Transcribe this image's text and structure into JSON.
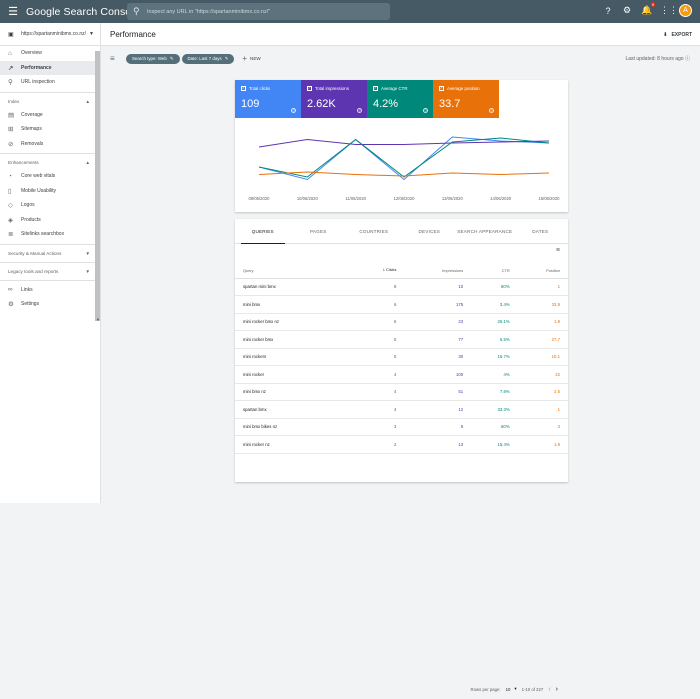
{
  "app": {
    "menu_icon": "menu-icon",
    "logo_prefix": "Google",
    "logo_text": "Search Console",
    "search_placeholder": "Inspect any URL in \"https://spartanminibmx.co.nz/\"",
    "notification_count": "9",
    "avatar_letter": "A"
  },
  "sidebar": {
    "property": "https://spartanminibmx.co.nz/",
    "items_main": [
      {
        "label": "Overview",
        "icon": "home-icon"
      },
      {
        "label": "Performance",
        "icon": "trending-icon",
        "active": true
      },
      {
        "label": "URL inspection",
        "icon": "search-icon"
      }
    ],
    "index_label": "Index",
    "items_index": [
      {
        "label": "Coverage",
        "icon": "coverage-icon"
      },
      {
        "label": "Sitemaps",
        "icon": "sitemap-icon"
      },
      {
        "label": "Removals",
        "icon": "removals-icon"
      }
    ],
    "enhancements_label": "Enhancements",
    "items_enh": [
      {
        "label": "Core web vitals",
        "icon": "speed-icon"
      },
      {
        "label": "Mobile Usability",
        "icon": "phone-icon"
      },
      {
        "label": "Logos",
        "icon": "logo-icon"
      },
      {
        "label": "Products",
        "icon": "product-icon"
      },
      {
        "label": "Sitelinks searchbox",
        "icon": "sitelinks-icon"
      }
    ],
    "security_label": "Security & Manual Actions",
    "legacy_label": "Legacy tools and reports",
    "items_bottom": [
      {
        "label": "Links",
        "icon": "links-icon"
      },
      {
        "label": "Settings",
        "icon": "settings-icon"
      }
    ]
  },
  "header": {
    "title": "Performance",
    "export_label": "EXPORT"
  },
  "filters": {
    "search_type": "Search type: Web",
    "date": "Date: Last 7 days",
    "new_label": "NEW",
    "last_updated": "Last updated: 8 hours ago"
  },
  "metrics": [
    {
      "label": "Total clicks",
      "value": "109",
      "color": "#4285f4"
    },
    {
      "label": "Total impressions",
      "value": "2.62K",
      "color": "#5e35b1"
    },
    {
      "label": "Average CTR",
      "value": "4.2%",
      "color": "#00897b"
    },
    {
      "label": "Average position",
      "value": "33.7",
      "color": "#e8710a"
    }
  ],
  "chart_data": {
    "type": "line",
    "x": [
      "09/06/2020",
      "10/06/2020",
      "11/06/2020",
      "12/06/2020",
      "13/06/2020",
      "14/06/2020",
      "15/06/2020"
    ],
    "series": [
      {
        "color": "#4285f4",
        "values": [
          0.7,
          0.95,
          0.15,
          0.95,
          0.1,
          0.18,
          0.22
        ]
      },
      {
        "color": "#5e35b1",
        "values": [
          0.3,
          0.15,
          0.25,
          0.25,
          0.22,
          0.2,
          0.18
        ]
      },
      {
        "color": "#00897b",
        "values": [
          0.7,
          0.9,
          0.15,
          0.9,
          0.2,
          0.12,
          0.22
        ]
      },
      {
        "color": "#e8710a",
        "values": [
          0.85,
          0.8,
          0.85,
          0.88,
          0.82,
          0.85,
          0.82
        ]
      }
    ]
  },
  "tabs": [
    "QUERIES",
    "PAGES",
    "COUNTRIES",
    "DEVICES",
    "SEARCH APPEARANCE",
    "DATES"
  ],
  "table": {
    "headers": [
      "Query",
      "Clicks",
      "Impressions",
      "CTR",
      "Position"
    ],
    "rows": [
      [
        "spartan mini bmx",
        "8",
        "10",
        "80%",
        "1"
      ],
      [
        "mini bmx",
        "6",
        "175",
        "3.4%",
        "33.9"
      ],
      [
        "mini rocker bmx nz",
        "6",
        "23",
        "26.1%",
        "1.9"
      ],
      [
        "mini rocker bmx",
        "5",
        "77",
        "6.5%",
        "27.7"
      ],
      [
        "mini rockers",
        "5",
        "30",
        "16.7%",
        "10.1"
      ],
      [
        "mini rocker",
        "4",
        "100",
        "4%",
        "22"
      ],
      [
        "mini bmx nz",
        "4",
        "51",
        "7.8%",
        "2.5"
      ],
      [
        "spartan bmx",
        "4",
        "12",
        "33.3%",
        "1"
      ],
      [
        "mini bmx bikes nz",
        "3",
        "5",
        "60%",
        "3"
      ],
      [
        "mini rocker nz",
        "2",
        "13",
        "15.4%",
        "1.9"
      ]
    ]
  },
  "pager": {
    "rows_label": "Rows per page:",
    "rows_value": "10",
    "range": "1-10 of 227"
  }
}
